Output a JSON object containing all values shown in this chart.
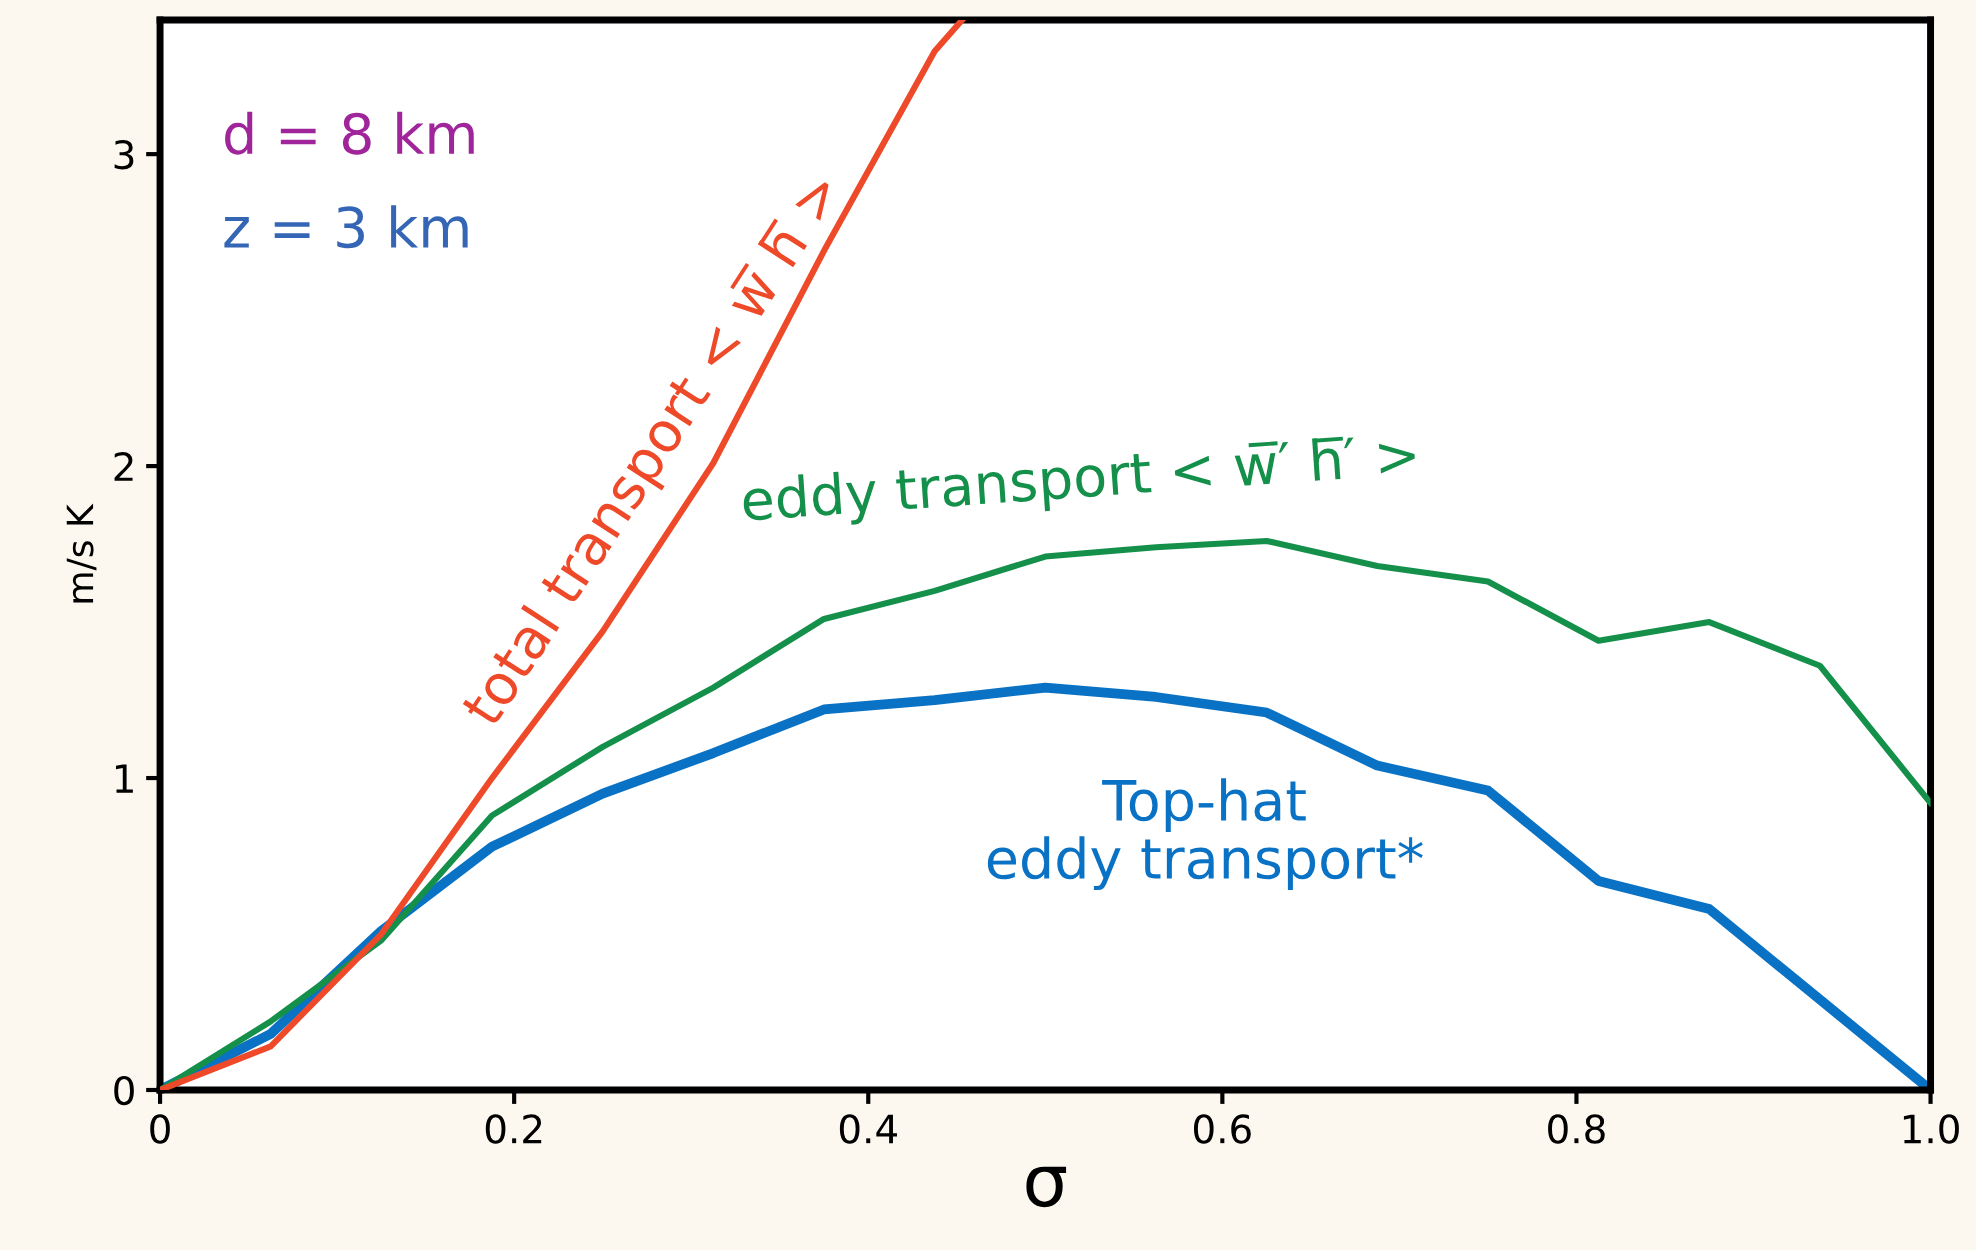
{
  "chart_data": {
    "type": "line",
    "xlabel": "σ",
    "ylabel": "m/s K",
    "x": [
      0,
      0.0625,
      0.125,
      0.1875,
      0.25,
      0.3125,
      0.375,
      0.4375,
      0.5,
      0.5625,
      0.625,
      0.6875,
      0.75,
      0.8125,
      0.875,
      0.9375,
      1.0
    ],
    "series": [
      {
        "name": "total transport < w̅ h̅ >",
        "color": "#ee4a2a",
        "x": [
          0,
          0.0625,
          0.125,
          0.1875,
          0.25,
          0.3125,
          0.375,
          0.4375,
          0.453
        ],
        "values": [
          0,
          0.14,
          0.5,
          1.0,
          1.47,
          2.01,
          2.69,
          3.33,
          3.43
        ]
      },
      {
        "name": "eddy transport < w̅′ h̅′ >",
        "color": "#14904a",
        "values": [
          0,
          0.22,
          0.48,
          0.88,
          1.1,
          1.29,
          1.51,
          1.6,
          1.71,
          1.74,
          1.76,
          1.68,
          1.63,
          1.44,
          1.5,
          1.36,
          0.92
        ]
      },
      {
        "name": "Top-hat\neddy transport*",
        "color": "#0a72c4",
        "values": [
          0,
          0.18,
          0.51,
          0.78,
          0.95,
          1.08,
          1.22,
          1.25,
          1.29,
          1.26,
          1.21,
          1.04,
          0.96,
          0.67,
          0.58,
          0.29,
          0
        ]
      }
    ],
    "annotations": [
      "d = 8 km",
      "z = 3 km"
    ],
    "xlim": [
      0,
      1
    ],
    "ylim": [
      0,
      3.43
    ],
    "xticks": [
      0,
      0.2,
      0.4,
      0.6,
      0.8,
      {
        "value": 1.0,
        "label": "1.0"
      }
    ],
    "yticks": [
      0,
      1,
      2,
      3
    ],
    "grid": false,
    "legend": false,
    "marker": "none",
    "line_style": "solid"
  }
}
